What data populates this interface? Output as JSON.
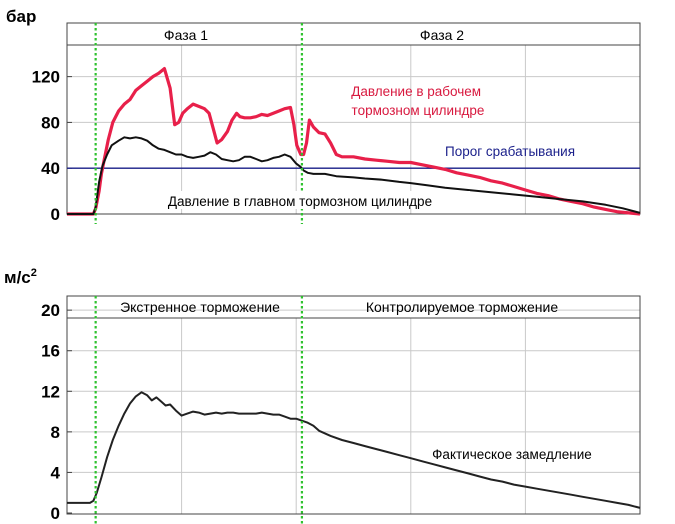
{
  "chart_data": [
    {
      "type": "line",
      "ylabel": "бар",
      "yticks": [
        0,
        40,
        80,
        120
      ],
      "ylim": [
        0,
        145
      ],
      "xlim": [
        0,
        100
      ],
      "grid": true,
      "phases": [
        {
          "label": "Фаза 1",
          "x_start": 5,
          "x_end": 41
        },
        {
          "label": "Фаза 2",
          "x_start": 41,
          "x_end": 100
        }
      ],
      "phase_boundaries": [
        5,
        41
      ],
      "threshold": {
        "name": "Порог срабатывания",
        "value": 40,
        "color": "#1a1f8a"
      },
      "series": [
        {
          "name": "Давление в рабочем тормозном цилиндре",
          "color": "#e8204a",
          "x": [
            0,
            4.6,
            5.0,
            5.6,
            6.0,
            6.6,
            7.2,
            8,
            9,
            10,
            11,
            12,
            13,
            14,
            15,
            16,
            17,
            18,
            18.8,
            19.5,
            20.2,
            21,
            22,
            23,
            24,
            24.8,
            25.5,
            26.2,
            27,
            28,
            28.8,
            29.6,
            30.2,
            31,
            32,
            33,
            34,
            35,
            36,
            37,
            38,
            39,
            39.6,
            40.1,
            40.8,
            41.3,
            41.8,
            42.3,
            43,
            44,
            45,
            46,
            47,
            48,
            50,
            52,
            54,
            56,
            58,
            60,
            62,
            64,
            66,
            68,
            70,
            72,
            74,
            76,
            78,
            80,
            82,
            84,
            86,
            88,
            90,
            92,
            94,
            96,
            98,
            100
          ],
          "values": [
            0,
            0,
            5,
            20,
            35,
            50,
            65,
            80,
            90,
            96,
            100,
            108,
            112,
            116,
            120,
            123,
            127,
            110,
            78,
            80,
            88,
            92,
            96,
            94,
            92,
            88,
            75,
            62,
            65,
            72,
            82,
            88,
            85,
            84,
            84,
            85,
            87,
            86,
            88,
            90,
            92,
            93,
            78,
            60,
            52,
            52,
            62,
            82,
            76,
            71,
            70,
            62,
            52,
            50,
            50,
            48,
            47,
            46,
            45,
            45,
            43,
            41,
            39,
            36,
            34,
            32,
            29,
            27,
            24,
            21,
            18,
            16,
            13,
            11,
            9,
            6,
            4,
            2,
            1,
            0
          ]
        },
        {
          "name": "Давление в главном тормозном цилиндре",
          "color": "#111111",
          "x": [
            0,
            4.6,
            5.0,
            5.6,
            6.2,
            7.0,
            7.8,
            9,
            10,
            11,
            12,
            13,
            14,
            15,
            16,
            17,
            18,
            19,
            20,
            21,
            22,
            23,
            24,
            25,
            26,
            27,
            28,
            29,
            30,
            31,
            32,
            33,
            34,
            35,
            36,
            37,
            38,
            39,
            40,
            40.8,
            41.3,
            42,
            43,
            45,
            47,
            50,
            52,
            55,
            58,
            60,
            63,
            66,
            70,
            74,
            78,
            82,
            86,
            90,
            94,
            97,
            100
          ],
          "values": [
            0,
            0,
            6,
            28,
            42,
            52,
            60,
            64,
            67,
            66,
            67,
            66,
            64,
            60,
            57,
            56,
            54,
            52,
            52,
            50,
            49,
            50,
            51,
            54,
            52,
            48,
            47,
            46,
            47,
            50,
            50,
            48,
            46,
            47,
            49,
            50,
            52,
            50,
            44,
            41,
            38,
            36,
            35,
            35,
            33,
            32,
            31,
            30,
            28,
            27,
            25,
            23,
            21,
            19,
            17,
            15,
            13,
            11,
            8,
            5,
            1
          ]
        }
      ]
    },
    {
      "type": "line",
      "ylabel": "м/с2",
      "yticks": [
        0,
        4,
        8,
        12,
        16,
        20
      ],
      "ylim": [
        0,
        21
      ],
      "xlim": [
        0,
        100
      ],
      "grid": true,
      "phases": [
        {
          "label": "Экстренное торможение",
          "x_start": 5,
          "x_end": 41
        },
        {
          "label": "Контролируемое торможение",
          "x_start": 41,
          "x_end": 100
        }
      ],
      "phase_boundaries": [
        5,
        41
      ],
      "series": [
        {
          "name": "Фактическое замедление",
          "color": "#222222",
          "x": [
            0,
            4,
            4.6,
            5.2,
            6,
            7,
            8,
            9,
            10,
            11,
            12,
            13,
            14,
            14.8,
            15.6,
            16.4,
            17.2,
            18,
            19,
            20,
            21,
            22,
            23,
            24,
            25,
            26,
            27,
            28,
            29,
            30,
            31,
            32,
            33,
            34,
            35,
            36,
            37,
            38,
            39,
            40,
            41,
            42,
            43,
            44,
            46,
            48,
            50,
            52,
            54,
            56,
            58,
            60,
            62,
            64,
            66,
            68,
            70,
            72,
            74,
            76,
            78,
            80,
            82,
            84,
            86,
            88,
            90,
            92,
            94,
            96,
            98,
            100
          ],
          "values": [
            1.0,
            1.0,
            1.2,
            2.0,
            3.5,
            5.5,
            7.2,
            8.6,
            9.8,
            10.8,
            11.5,
            11.9,
            11.6,
            11.1,
            11.4,
            11.0,
            10.6,
            10.7,
            10.1,
            9.6,
            9.8,
            10.0,
            9.9,
            9.7,
            9.8,
            9.9,
            9.8,
            9.9,
            9.9,
            9.8,
            9.8,
            9.8,
            9.8,
            9.9,
            9.8,
            9.7,
            9.7,
            9.5,
            9.3,
            9.3,
            9.1,
            8.9,
            8.6,
            8.1,
            7.6,
            7.2,
            6.9,
            6.6,
            6.3,
            6.0,
            5.7,
            5.4,
            5.1,
            4.8,
            4.5,
            4.2,
            3.9,
            3.6,
            3.3,
            3.1,
            2.8,
            2.6,
            2.4,
            2.2,
            2.0,
            1.8,
            1.6,
            1.4,
            1.2,
            1.0,
            0.8,
            0.5
          ]
        }
      ]
    }
  ]
}
